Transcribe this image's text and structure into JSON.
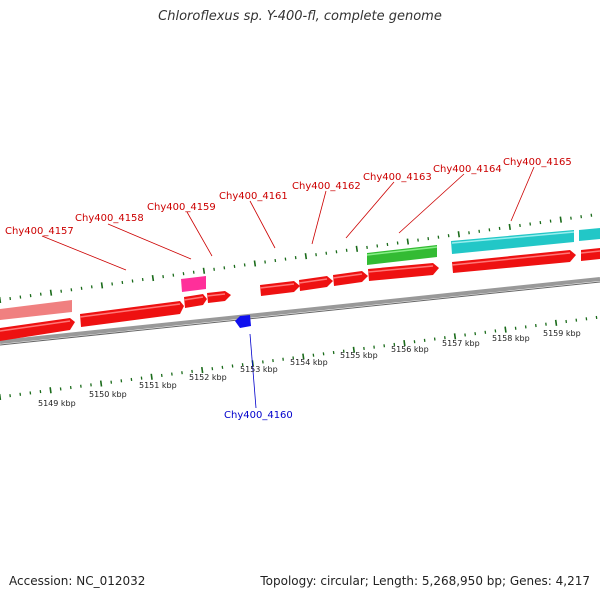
{
  "title": "Chloroflexus sp. Y-400-fl, complete genome",
  "footer": {
    "accession": "Accession: NC_012032",
    "summary": "Topology: circular; Length: 5,268,950 bp; Genes: 4,217"
  },
  "colors": {
    "forward_strand": "#ff0000",
    "reverse_strand": "#ff0000",
    "light_red": "#f08080",
    "magenta": "#ff3399",
    "green": "#33cc33",
    "cyan": "#22cccc",
    "blue": "#0000ff",
    "backbone": "#888888",
    "tick": "#1a6b1a",
    "label_forward": "#cc0000",
    "label_reverse": "#0000cc"
  },
  "scale_labels": [
    "5149 kbp",
    "5150 kbp",
    "5151 kbp",
    "5152 kbp",
    "5153 kbp",
    "5154 kbp",
    "5155 kbp",
    "5156 kbp",
    "5157 kbp",
    "5158 kbp",
    "5159 kbp"
  ],
  "gene_labels": [
    {
      "name": "Chy400_4157",
      "strand": "forward"
    },
    {
      "name": "Chy400_4158",
      "strand": "forward"
    },
    {
      "name": "Chy400_4159",
      "strand": "forward"
    },
    {
      "name": "Chy400_4161",
      "strand": "forward"
    },
    {
      "name": "Chy400_4162",
      "strand": "forward"
    },
    {
      "name": "Chy400_4163",
      "strand": "forward"
    },
    {
      "name": "Chy400_4164",
      "strand": "forward"
    },
    {
      "name": "Chy400_4165",
      "strand": "forward"
    },
    {
      "name": "Chy400_4160",
      "strand": "reverse"
    }
  ]
}
